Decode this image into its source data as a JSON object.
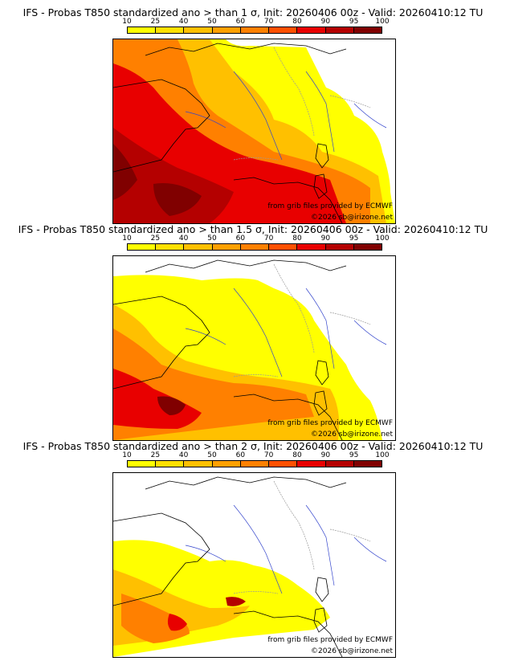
{
  "colorbar": {
    "ticks": [
      "10",
      "25",
      "40",
      "50",
      "60",
      "70",
      "80",
      "90",
      "95",
      "100"
    ],
    "colors": [
      "#ffff00",
      "#ffe000",
      "#ffc000",
      "#ffa000",
      "#ff8000",
      "#ff5000",
      "#e80000",
      "#b40000",
      "#800000"
    ]
  },
  "panels": [
    {
      "title": "IFS - Probas T850  standardized ano > than 1 σ, Init: 20260406 00z - Valid: 20260410:12 TU",
      "threshold_sigma": 1,
      "credit_grib": "from grib files provided by ECMWF",
      "credit_site": "©2026 sb@irizone.net"
    },
    {
      "title": "IFS - Probas T850  standardized ano > than 1.5 σ, Init: 20260406 00z - Valid: 20260410:12 TU",
      "threshold_sigma": 1.5,
      "credit_grib": "from grib files provided by ECMWF",
      "credit_site": "©2026 sb@irizone.net"
    },
    {
      "title": "IFS - Probas T850  standardized ano > than 2 σ, Init: 20260406 00z - Valid: 20260410:12 TU",
      "threshold_sigma": 2,
      "credit_grib": "from grib files provided by ECMWF",
      "credit_site": "©2026 sb@irizone.net"
    }
  ]
}
